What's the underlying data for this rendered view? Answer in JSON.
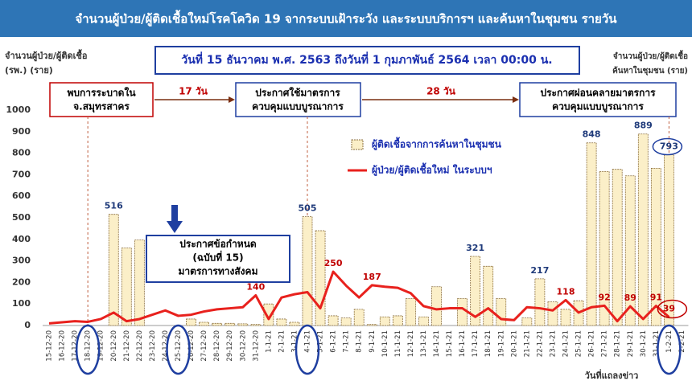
{
  "chart_data": {
    "type": "bar-line",
    "title": "จำนวนผู้ป่วย/ผู้ติดเชื้อใหม่โรคโควิด 19 จากระบบเฝ้าระวัง และระบบบริการฯ และค้นหาในชุมชน รายวัน",
    "subtitle": "วันที่ 15 ธันวาคม พ.ศ. 2563 ถึงวันที่ 1 กุมภาพันธ์ 2564 เวลา 00:00 น.",
    "y_label": [
      "จำนวนผู้ป่วย/ผู้ติดเชื้อ",
      "(รพ.) (ราย)"
    ],
    "y2_label": [
      "จำนวนผู้ป่วย/ผู้ติดเชื้อ",
      "ค้นหาในชุมชน (ราย)"
    ],
    "x_label": "วันที่แถลงข่าว",
    "annotations": {
      "outbreak": [
        "พบการระบาดใน",
        "จ.สมุทรสาคร"
      ],
      "gap1": "17 วัน",
      "measures": [
        "ประกาศใช้มาตรการ",
        "ควบคุมแบบบูรณาการ"
      ],
      "gap2": "28 วัน",
      "relax": [
        "ประกาศผ่อนคลายมาตรการ",
        "ควบคุมแบบบูรณาการ"
      ],
      "decree": [
        "ประกาศข้อกำหนด",
        "(ฉบับที่ 15)",
        "มาตรการทางสังคม"
      ]
    },
    "categories": [
      "15-12-20",
      "16-12-20",
      "17-12-20",
      "18-12-20",
      "19-12-20",
      "20-12-20",
      "21-12-20",
      "22-12-20",
      "23-12-20",
      "24-12-20",
      "25-12-20",
      "26-12-20",
      "27-12-20",
      "28-12-20",
      "29-12-20",
      "30-12-20",
      "31-12-20",
      "1-1-21",
      "2-1-21",
      "3-1-21",
      "4-1-21",
      "5-1-21",
      "6-1-21",
      "7-1-21",
      "8-1-21",
      "9-1-21",
      "10-1-21",
      "11-1-21",
      "12-1-21",
      "13-1-21",
      "14-1-21",
      "15-1-21",
      "16-1-21",
      "17-1-21",
      "18-1-21",
      "19-1-21",
      "20-1-21",
      "21-1-21",
      "22-1-21",
      "23-1-21",
      "24-1-21",
      "25-1-21",
      "26-1-21",
      "27-1-21",
      "28-1-21",
      "29-1-21",
      "30-1-21",
      "31-1-21",
      "1-2-21",
      "2-2-21"
    ],
    "series": [
      {
        "name": "ผู้ติดเชื้อจากการค้นหาในชุมชน",
        "kind": "bar",
        "color": "#fbefc8",
        "edge": "#8a6d3b",
        "values": [
          0,
          0,
          0,
          0,
          0,
          516,
          360,
          397,
          0,
          0,
          0,
          30,
          15,
          10,
          10,
          8,
          5,
          100,
          30,
          15,
          505,
          440,
          45,
          35,
          75,
          5,
          40,
          45,
          125,
          40,
          180,
          0,
          125,
          321,
          275,
          125,
          0,
          35,
          217,
          110,
          75,
          115,
          848,
          715,
          725,
          695,
          889,
          730,
          793,
          null
        ],
        "value_labels": [
          null,
          null,
          null,
          null,
          null,
          "516",
          null,
          null,
          null,
          null,
          null,
          null,
          null,
          null,
          null,
          null,
          null,
          null,
          null,
          null,
          "505",
          null,
          null,
          null,
          null,
          null,
          null,
          null,
          null,
          null,
          null,
          null,
          null,
          "321",
          null,
          null,
          null,
          null,
          "217",
          null,
          null,
          null,
          "848",
          null,
          null,
          null,
          "889",
          null,
          "793",
          null
        ]
      },
      {
        "name": "ผู้ป่วย/ผู้ติดเชื้อใหม่ ในระบบฯ",
        "kind": "line",
        "color": "#e8211d",
        "values": [
          10,
          15,
          20,
          17,
          30,
          60,
          20,
          30,
          50,
          70,
          45,
          50,
          65,
          75,
          80,
          85,
          140,
          30,
          130,
          145,
          155,
          80,
          250,
          185,
          130,
          187,
          180,
          175,
          150,
          90,
          75,
          80,
          80,
          40,
          80,
          30,
          25,
          85,
          80,
          70,
          118,
          60,
          85,
          92,
          20,
          89,
          30,
          91,
          39,
          null
        ],
        "value_labels": [
          null,
          null,
          null,
          null,
          null,
          null,
          null,
          null,
          null,
          null,
          null,
          null,
          null,
          null,
          null,
          null,
          "140",
          null,
          null,
          null,
          null,
          null,
          "250",
          null,
          null,
          "187",
          null,
          null,
          null,
          null,
          null,
          null,
          null,
          null,
          null,
          null,
          null,
          null,
          null,
          null,
          "118",
          null,
          null,
          "92",
          null,
          "89",
          null,
          "91",
          "39",
          null
        ]
      }
    ],
    "ylim": [
      0,
      1000
    ],
    "yticks": [
      0,
      100,
      200,
      300,
      400,
      500,
      600,
      700,
      800,
      900,
      1000
    ],
    "grid": false
  }
}
